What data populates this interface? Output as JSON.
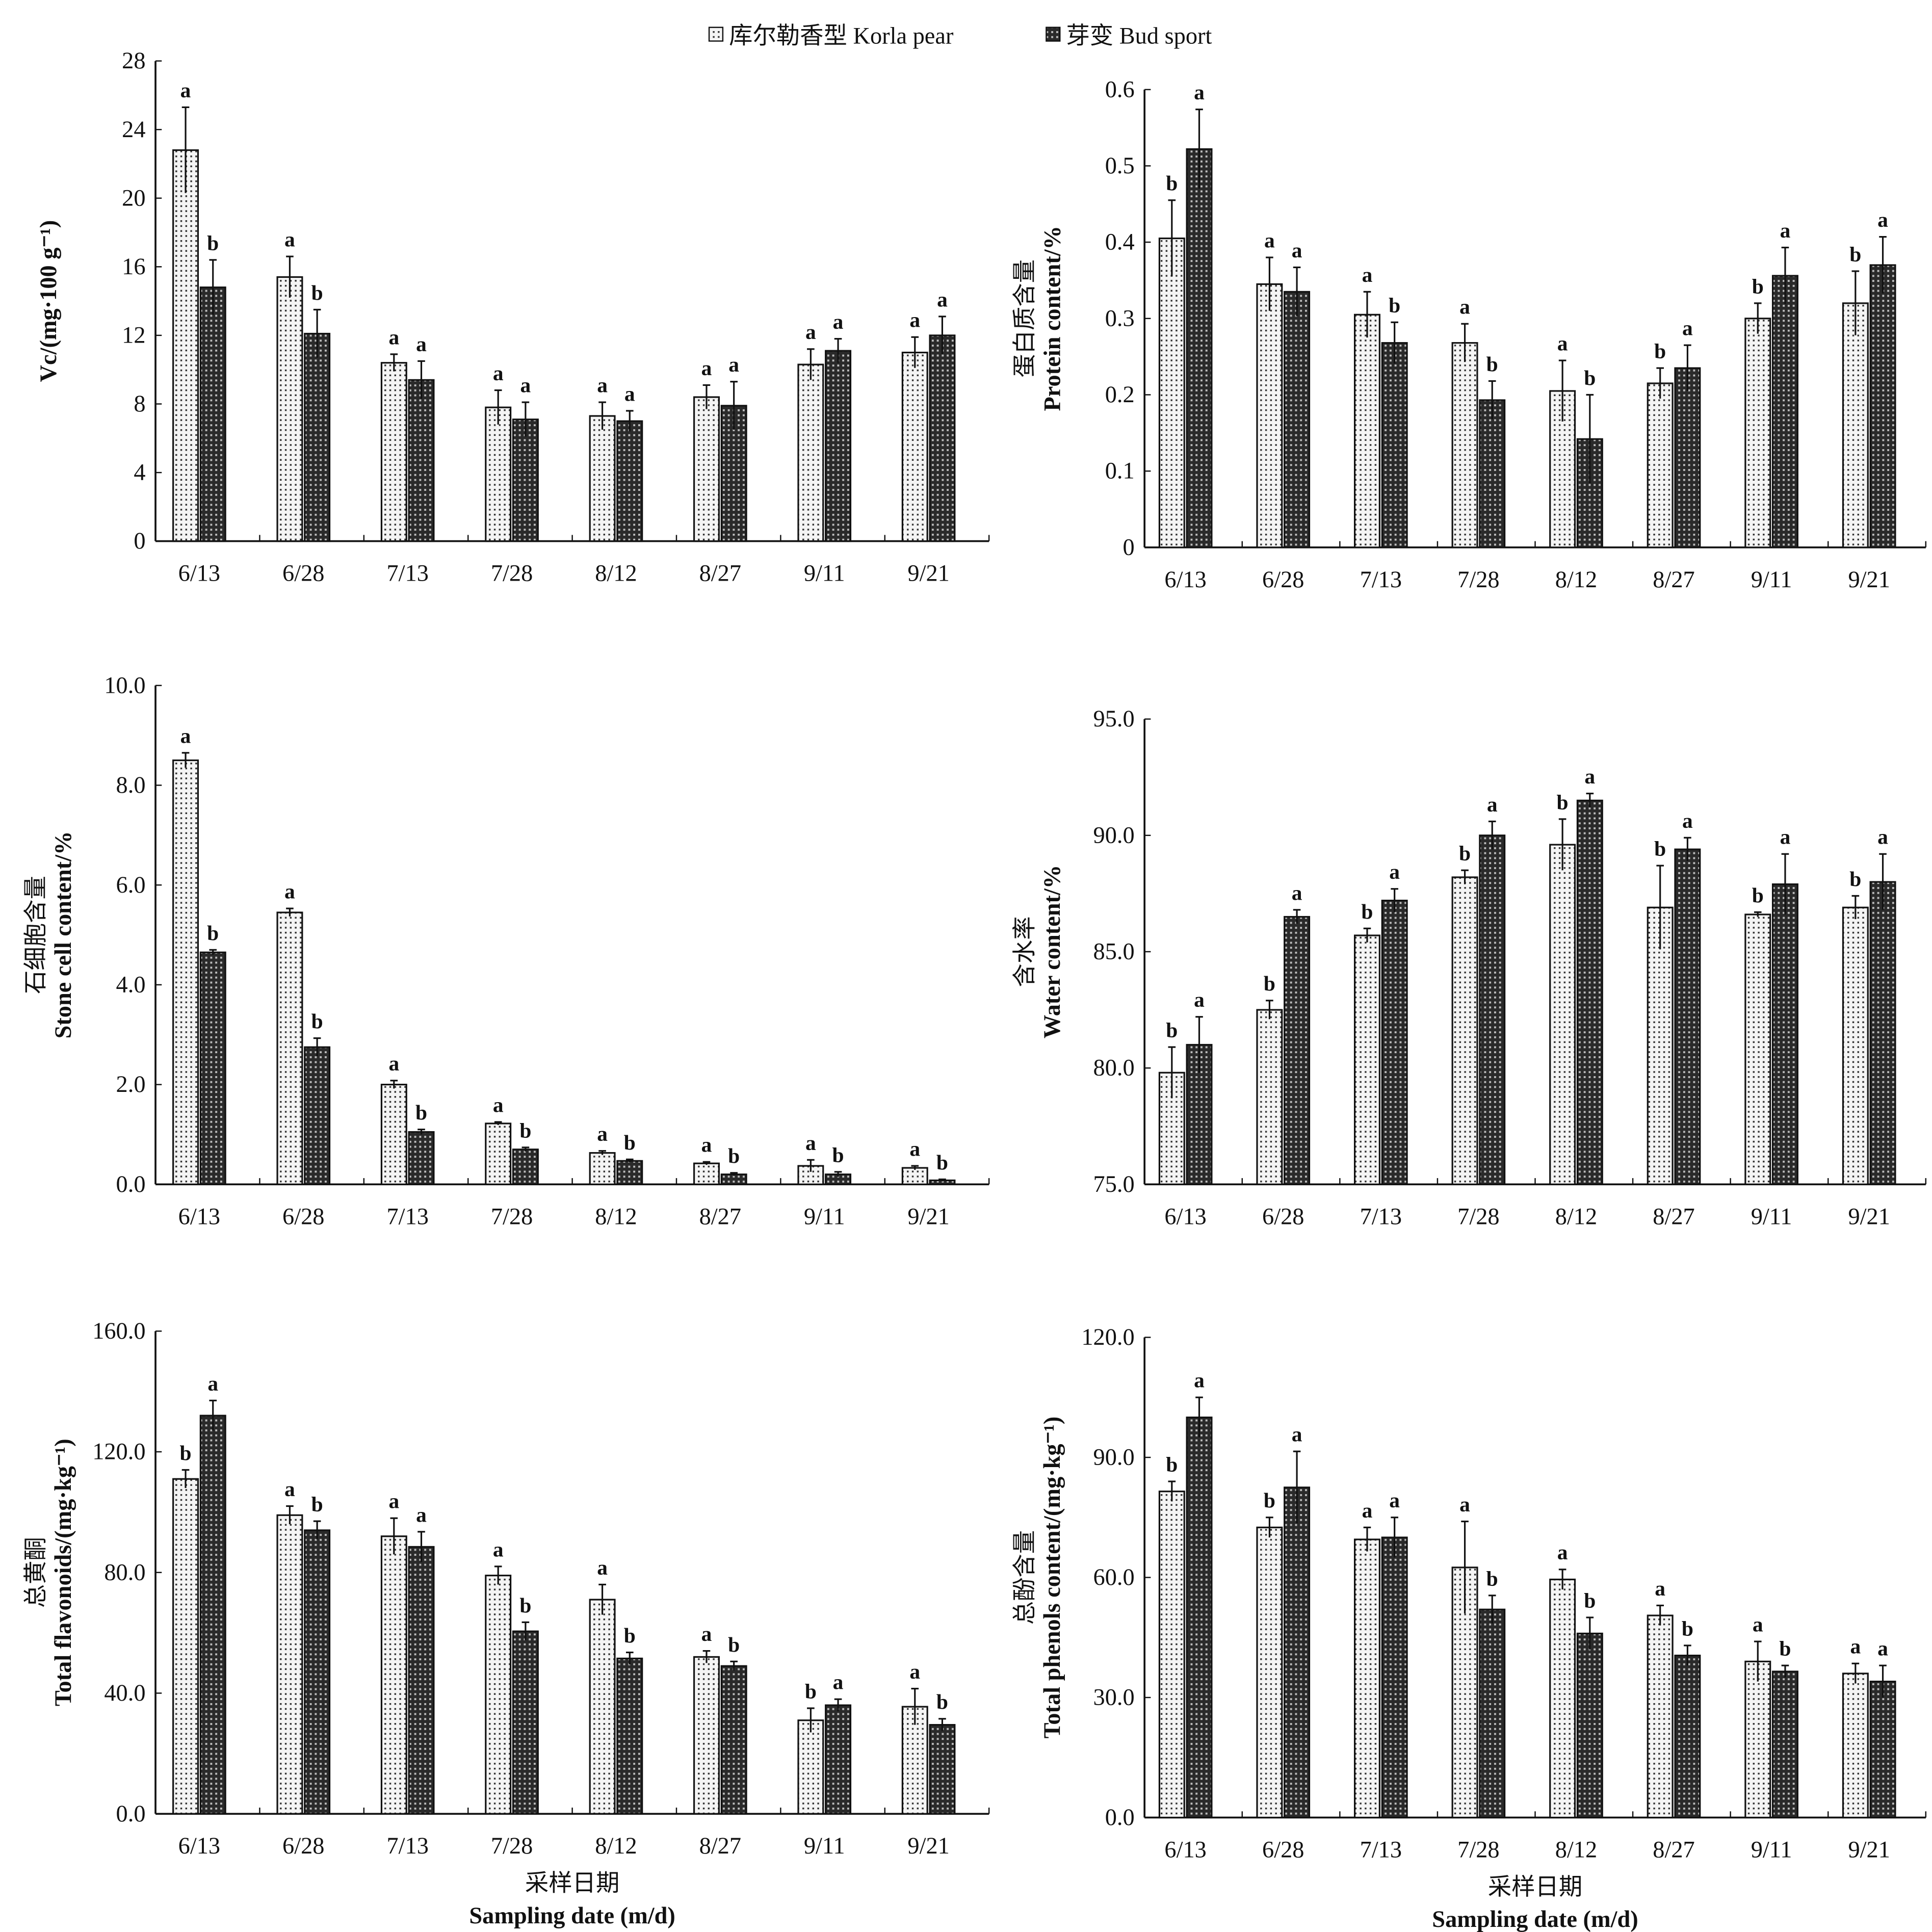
{
  "legend": {
    "position": "top-center",
    "items": [
      {
        "label": "库尔勒香型 Korla pear",
        "pattern": "dotted"
      },
      {
        "label": "芽变 Bud sport",
        "pattern": "crosshatch"
      }
    ]
  },
  "colors": {
    "outline": "#111111",
    "korla_fill": "#d9d9d9",
    "bud_fill": "#3a3a3a"
  },
  "chart_data": [
    {
      "type": "bar",
      "categories": [
        "6/13",
        "6/28",
        "7/13",
        "7/28",
        "8/12",
        "8/27",
        "9/11",
        "9/21"
      ],
      "ylabel_cn": "",
      "ylabel": "Vc/(mg·100 g⁻¹)",
      "ylim": [
        0,
        28
      ],
      "yticks": [
        "0",
        "4",
        "8",
        "12",
        "16",
        "20",
        "24",
        "28"
      ],
      "series": [
        {
          "name": "库尔勒香型 Korla pear",
          "values": [
            22.8,
            15.4,
            10.4,
            7.8,
            7.3,
            8.4,
            10.3,
            11.0
          ],
          "errors": [
            2.5,
            1.2,
            0.5,
            1.0,
            0.8,
            0.7,
            0.9,
            0.9
          ],
          "letters": [
            "a",
            "a",
            "a",
            "a",
            "a",
            "a",
            "a",
            "a"
          ]
        },
        {
          "name": "芽变 Bud sport",
          "values": [
            14.8,
            12.1,
            9.4,
            7.1,
            7.0,
            7.9,
            11.1,
            12.0
          ],
          "errors": [
            1.6,
            1.4,
            1.1,
            1.0,
            0.6,
            1.4,
            0.7,
            1.1
          ],
          "letters": [
            "b",
            "b",
            "a",
            "a",
            "a",
            "a",
            "a",
            "a"
          ]
        }
      ]
    },
    {
      "type": "bar",
      "categories": [
        "6/13",
        "6/28",
        "7/13",
        "7/28",
        "8/12",
        "8/27",
        "9/11",
        "9/21"
      ],
      "ylabel_cn": "蛋白质含量",
      "ylabel": "Protein content/%",
      "ylim": [
        0,
        0.6
      ],
      "yticks": [
        "0",
        "0.1",
        "0.2",
        "0.3",
        "0.4",
        "0.5",
        "0.6"
      ],
      "series": [
        {
          "name": "库尔勒香型 Korla pear",
          "values": [
            0.405,
            0.345,
            0.305,
            0.268,
            0.205,
            0.215,
            0.3,
            0.32
          ],
          "errors": [
            0.05,
            0.035,
            0.03,
            0.025,
            0.04,
            0.02,
            0.02,
            0.042
          ],
          "letters": [
            "b",
            "a",
            "a",
            "a",
            "a",
            "b",
            "b",
            "b"
          ]
        },
        {
          "name": "芽变 Bud sport",
          "values": [
            0.522,
            0.335,
            0.268,
            0.193,
            0.142,
            0.235,
            0.356,
            0.37
          ],
          "errors": [
            0.052,
            0.032,
            0.027,
            0.025,
            0.058,
            0.03,
            0.037,
            0.037
          ],
          "letters": [
            "a",
            "a",
            "b",
            "b",
            "b",
            "a",
            "a",
            "a"
          ]
        }
      ]
    },
    {
      "type": "bar",
      "categories": [
        "6/13",
        "6/28",
        "7/13",
        "7/28",
        "8/12",
        "8/27",
        "9/11",
        "9/21"
      ],
      "ylabel_cn": "石细胞含量",
      "ylabel": "Stone cell content/%",
      "ylim": [
        0,
        10
      ],
      "yticks": [
        "0.0",
        "2.0",
        "4.0",
        "6.0",
        "8.0",
        "10.0"
      ],
      "series": [
        {
          "name": "库尔勒香型 Korla pear",
          "values": [
            8.5,
            5.45,
            2.0,
            1.22,
            0.63,
            0.42,
            0.37,
            0.33
          ],
          "errors": [
            0.15,
            0.08,
            0.08,
            0.03,
            0.04,
            0.03,
            0.12,
            0.04
          ],
          "letters": [
            "a",
            "a",
            "a",
            "a",
            "a",
            "a",
            "a",
            "a"
          ]
        },
        {
          "name": "芽变 Bud sport",
          "values": [
            4.65,
            2.75,
            1.05,
            0.7,
            0.47,
            0.2,
            0.2,
            0.08
          ],
          "errors": [
            0.05,
            0.18,
            0.05,
            0.04,
            0.03,
            0.03,
            0.05,
            0.02
          ],
          "letters": [
            "b",
            "b",
            "b",
            "b",
            "b",
            "b",
            "b",
            "b"
          ]
        }
      ]
    },
    {
      "type": "bar",
      "categories": [
        "6/13",
        "6/28",
        "7/13",
        "7/28",
        "8/12",
        "8/27",
        "9/11",
        "9/21"
      ],
      "ylabel_cn": "含水率",
      "ylabel": "Water content/%",
      "ylim": [
        75,
        95
      ],
      "yticks": [
        "75.0",
        "80.0",
        "85.0",
        "90.0",
        "95.0"
      ],
      "series": [
        {
          "name": "库尔勒香型 Korla pear",
          "values": [
            79.8,
            82.5,
            85.7,
            88.2,
            89.6,
            86.9,
            86.6,
            86.9
          ],
          "errors": [
            1.1,
            0.4,
            0.3,
            0.3,
            1.1,
            1.8,
            0.1,
            0.5
          ],
          "letters": [
            "b",
            "b",
            "b",
            "b",
            "b",
            "b",
            "b",
            "b"
          ]
        },
        {
          "name": "芽变 Bud sport",
          "values": [
            81.0,
            86.5,
            87.2,
            90.0,
            91.5,
            89.4,
            87.9,
            88.0
          ],
          "errors": [
            1.2,
            0.3,
            0.5,
            0.6,
            0.3,
            0.5,
            1.3,
            1.2
          ],
          "letters": [
            "a",
            "a",
            "a",
            "a",
            "a",
            "a",
            "a",
            "a"
          ]
        }
      ]
    },
    {
      "type": "bar",
      "categories": [
        "6/13",
        "6/28",
        "7/13",
        "7/28",
        "8/12",
        "8/27",
        "9/11",
        "9/21"
      ],
      "ylabel_cn": "总黄酮",
      "ylabel": "Total flavonoids/(mg·kg⁻¹)",
      "ylim": [
        0,
        160
      ],
      "yticks": [
        "0.0",
        "40.0",
        "80.0",
        "120.0",
        "160.0"
      ],
      "xlabel_cn": "采样日期",
      "xlabel": "Sampling date (m/d)",
      "series": [
        {
          "name": "库尔勒香型 Korla pear",
          "values": [
            111,
            99,
            92,
            79,
            71,
            52,
            31,
            35.5
          ],
          "errors": [
            3,
            3,
            6,
            3,
            5,
            2,
            4,
            6
          ],
          "letters": [
            "b",
            "a",
            "a",
            "a",
            "a",
            "a",
            "b",
            "a"
          ]
        },
        {
          "name": "芽变 Bud sport",
          "values": [
            132,
            94,
            88.5,
            60.5,
            51.5,
            49,
            36,
            29.5
          ],
          "errors": [
            5,
            3,
            5,
            3,
            2,
            1.5,
            2,
            2
          ],
          "letters": [
            "a",
            "b",
            "a",
            "b",
            "b",
            "b",
            "a",
            "b"
          ]
        }
      ]
    },
    {
      "type": "bar",
      "categories": [
        "6/13",
        "6/28",
        "7/13",
        "7/28",
        "8/12",
        "8/27",
        "9/11",
        "9/21"
      ],
      "ylabel_cn": "总酚含量",
      "ylabel": "Total phenols content/(mg·kg⁻¹)",
      "ylim": [
        0,
        120
      ],
      "yticks": [
        "0.0",
        "30.0",
        "60.0",
        "90.0",
        "120.0"
      ],
      "xlabel_cn": "采样日期",
      "xlabel": "Sampling date (m/d)",
      "series": [
        {
          "name": "库尔勒香型 Korla pear",
          "values": [
            81.5,
            72.5,
            69.5,
            62.5,
            59.5,
            50.5,
            39,
            36
          ],
          "errors": [
            2.5,
            2.5,
            3,
            11.5,
            2.5,
            2.5,
            5,
            2.5
          ],
          "letters": [
            "b",
            "b",
            "a",
            "a",
            "a",
            "a",
            "a",
            "a"
          ]
        },
        {
          "name": "芽变 Bud sport",
          "values": [
            100,
            82.5,
            70,
            52,
            46,
            40.5,
            36.5,
            34
          ],
          "errors": [
            5,
            9,
            5,
            3.5,
            4,
            2.5,
            1.5,
            4
          ],
          "letters": [
            "a",
            "a",
            "a",
            "b",
            "b",
            "b",
            "b",
            "a"
          ]
        }
      ]
    }
  ]
}
